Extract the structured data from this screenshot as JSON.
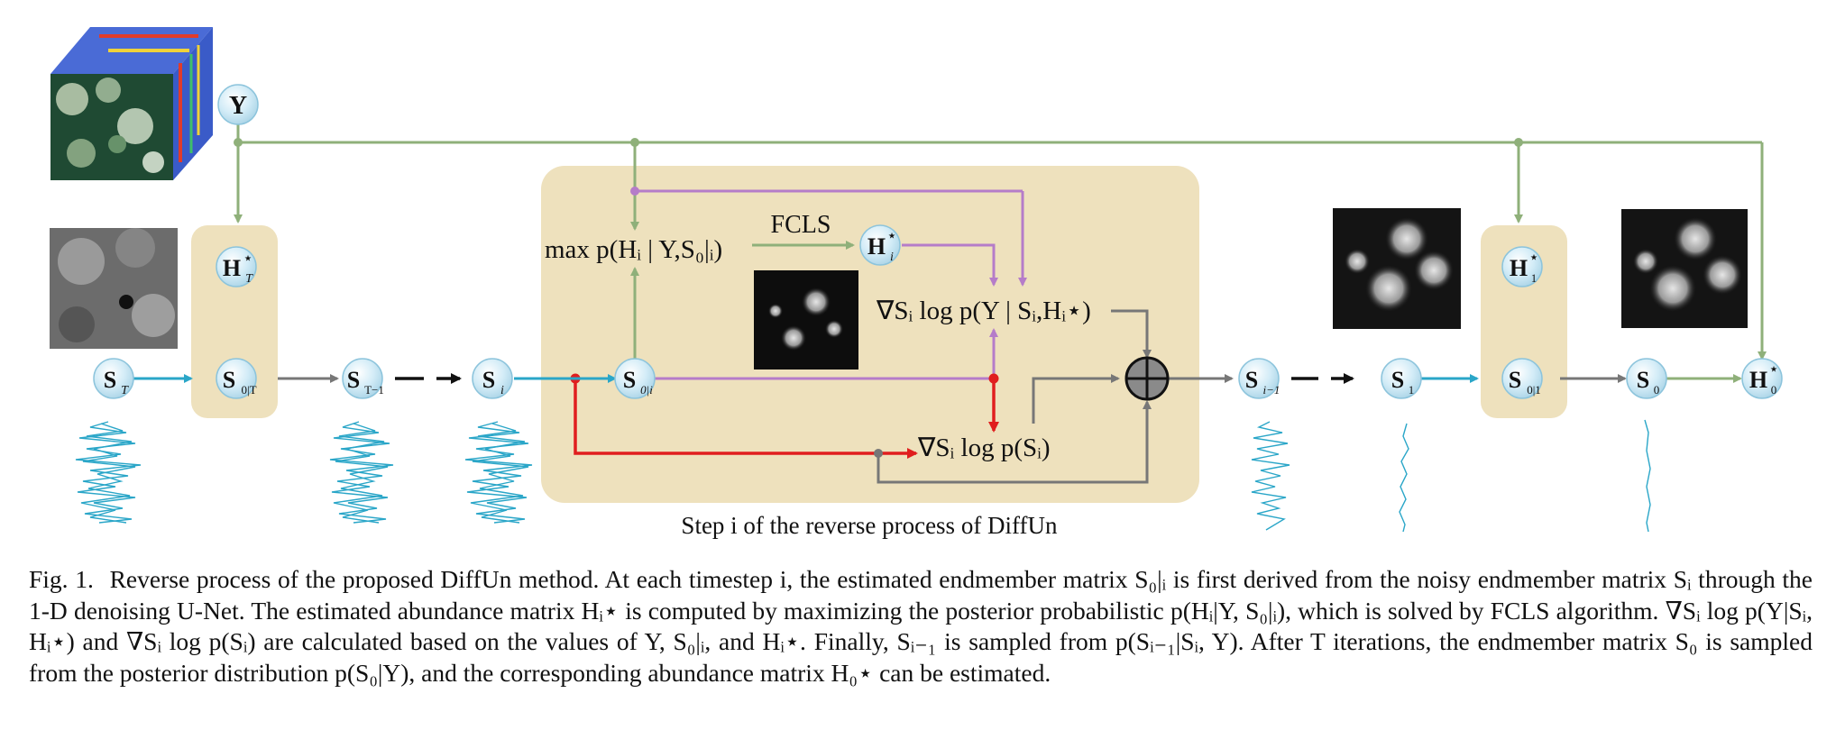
{
  "nodes": {
    "Y": "Y",
    "H_T": "H",
    "H_T_sup": "⋆",
    "H_T_sub": "T",
    "S_T": "S",
    "S_T_sub": "T",
    "S_0T": "S",
    "S_0T_sub": "0|T",
    "S_Tm1": "S",
    "S_Tm1_sub": "T−1",
    "S_i": "S",
    "S_i_sub": "i",
    "S_0i": "S",
    "S_0i_sub": "0|i",
    "H_i": "H",
    "H_i_sup": "⋆",
    "H_i_sub": "i",
    "S_im1": "S",
    "S_im1_sub": "i−1",
    "S_1": "S",
    "S_1_sub": "1",
    "H_1": "H",
    "H_1_sup": "⋆",
    "H_1_sub": "1",
    "S_01": "S",
    "S_01_sub": "0|1",
    "S_0": "S",
    "S_0_sub": "0",
    "H_0": "H",
    "H_0_sup": "⋆",
    "H_0_sub": "0"
  },
  "labels": {
    "fcls": "FCLS",
    "max_expr": "max p(Hᵢ | Y,S₀|ᵢ)",
    "grad_likelihood": "∇Sᵢ log p(Y | Sᵢ,Hᵢ⋆)",
    "grad_prior": "∇Sᵢ log p(Sᵢ)",
    "step_caption": "Step i of the reverse process of DiffUn"
  },
  "caption": {
    "lead": "Fig. 1.",
    "text": "Reverse process of the proposed DiffUn method. At each timestep i, the estimated endmember matrix S₀|ᵢ is first derived from the noisy endmember matrix Sᵢ through the 1-D denoising U-Net. The estimated abundance matrix Hᵢ⋆ is computed by maximizing the posterior probabilistic p(Hᵢ|Y, S₀|ᵢ), which is solved by FCLS algorithm. ∇Sᵢ log p(Y|Sᵢ, Hᵢ⋆) and ∇Sᵢ log p(Sᵢ) are calculated based on the values of Y, S₀|ᵢ, and Hᵢ⋆. Finally, Sᵢ₋₁ is sampled from p(Sᵢ₋₁|Sᵢ, Y). After T iterations, the endmember matrix S₀ is sampled from the posterior distribution p(S₀|Y), and the corresponding abundance matrix H₀⋆ can be estimated."
  },
  "colors": {
    "green": "#8fb07a",
    "purple": "#b57cc9",
    "red": "#e01e1e",
    "cyan": "#2aa6c8",
    "gray": "#777777",
    "panel": "#eee1bd",
    "node_fill": "#cde8f4"
  }
}
